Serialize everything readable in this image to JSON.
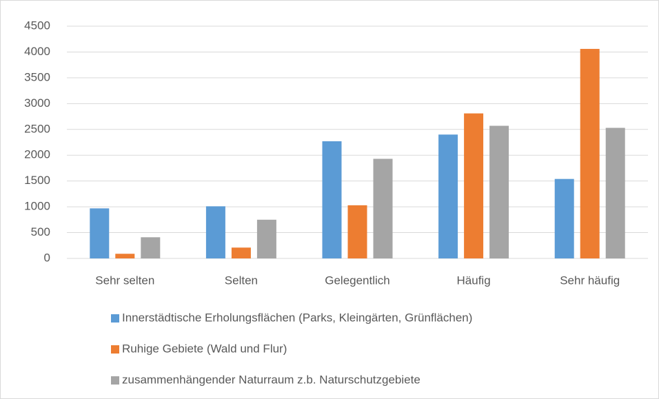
{
  "chart_data": {
    "type": "bar",
    "categories": [
      "Sehr selten",
      "Selten",
      "Gelegentlich",
      "Häufig",
      "Sehr häufig"
    ],
    "series": [
      {
        "name": "Innerstädtische Erholungsflächen (Parks, Kleingärten, Grünflächen)",
        "color": "#5b9bd5",
        "values": [
          970,
          1010,
          2270,
          2400,
          1540
        ]
      },
      {
        "name": "Ruhige Gebiete (Wald und Flur)",
        "color": "#ed7d31",
        "values": [
          90,
          210,
          1030,
          2810,
          4060
        ]
      },
      {
        "name": "zusammenhängender Naturraum z.b. Naturschutzgebiete",
        "color": "#a5a5a5",
        "values": [
          410,
          750,
          1930,
          2570,
          2530
        ]
      }
    ],
    "ylim": [
      0,
      4500
    ],
    "yticks": [
      0,
      500,
      1000,
      1500,
      2000,
      2500,
      3000,
      3500,
      4000,
      4500
    ],
    "grid": true,
    "legend": "bottom"
  }
}
